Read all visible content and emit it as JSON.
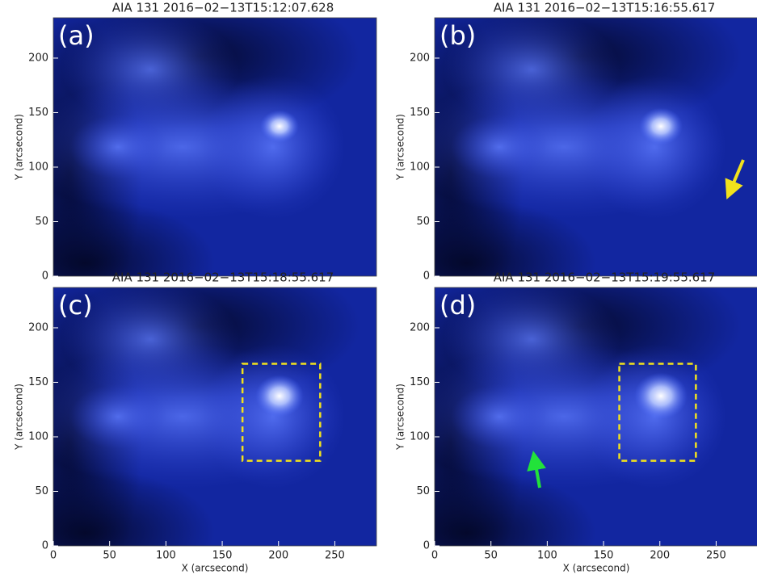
{
  "chart_data": [
    {
      "type": "image",
      "title": "AIA 131 2016−02−13T15:12:07.628",
      "panel_label": "(a)",
      "y_label": "Y (arcsecond)",
      "xlim": [
        0,
        287
      ],
      "ylim": [
        0,
        237
      ],
      "yticks": [
        0,
        50,
        100,
        150,
        200
      ]
    },
    {
      "type": "image",
      "title": "AIA 131 2016−02−13T15:16:55.617",
      "panel_label": "(b)",
      "y_label": "Y (arcsecond)",
      "xlim": [
        0,
        287
      ],
      "ylim": [
        0,
        237
      ],
      "yticks": [
        0,
        50,
        100,
        150,
        200
      ],
      "arrow_color": "#f2e21c"
    },
    {
      "type": "image",
      "title": "AIA 131 2016−02−13T15:18:55.617",
      "panel_label": "(c)",
      "y_label": "Y (arcsecond)",
      "x_label": "X (arcsecond)",
      "xlim": [
        0,
        287
      ],
      "ylim": [
        0,
        237
      ],
      "yticks": [
        0,
        50,
        100,
        150,
        200
      ],
      "xticks": [
        0,
        50,
        100,
        150,
        200,
        250
      ],
      "box": {
        "x": [
          168,
          237
        ],
        "y": [
          78,
          167
        ],
        "color": "#f2e21c"
      }
    },
    {
      "type": "image",
      "title": "AIA 131 2016−02−13T15:19:55.617",
      "panel_label": "(d)",
      "y_label": "Y (arcsecond)",
      "x_label": "X (arcsecond)",
      "xlim": [
        0,
        287
      ],
      "ylim": [
        0,
        237
      ],
      "yticks": [
        0,
        50,
        100,
        150,
        200
      ],
      "xticks": [
        0,
        50,
        100,
        150,
        200,
        250
      ],
      "box": {
        "x": [
          164,
          232
        ],
        "y": [
          78,
          167
        ],
        "color": "#f2e21c"
      },
      "arrow_color": "#22e23a"
    }
  ]
}
